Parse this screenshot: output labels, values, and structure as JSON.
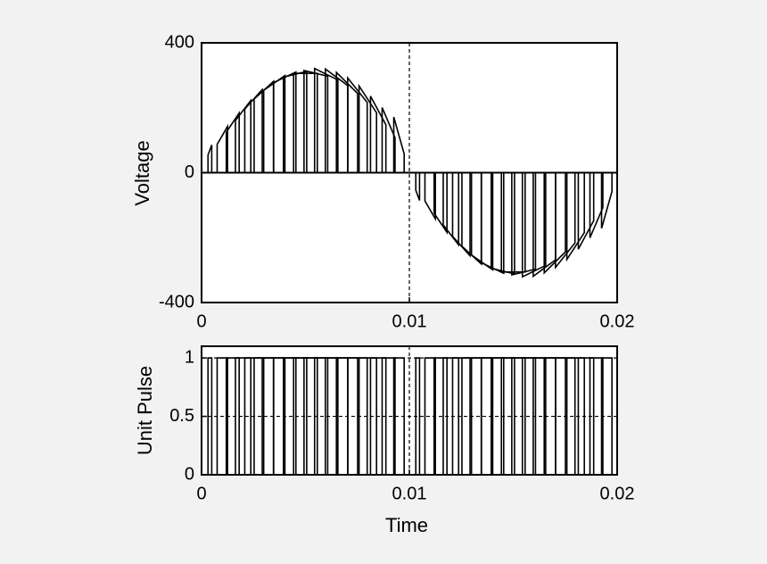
{
  "colors": {
    "background": "#f2f2f2",
    "plot_background": "#ffffff",
    "ink": "#000000"
  },
  "chart_data": [
    {
      "type": "line",
      "title": "",
      "xlabel": "",
      "ylabel": "Voltage",
      "xlim": [
        0,
        0.02
      ],
      "ylim": [
        -400,
        400
      ],
      "x_ticks": [
        0,
        0.01,
        0.02
      ],
      "x_tick_labels": [
        "0",
        "0.01",
        "0.02"
      ],
      "y_ticks": [
        -400,
        0,
        400
      ],
      "y_tick_labels": [
        "-400",
        "0",
        "400"
      ],
      "grid": false,
      "reference_lines": [
        {
          "orientation": "vertical",
          "at": 0.01,
          "style": "dashed"
        },
        {
          "orientation": "horizontal",
          "at": 0,
          "style": "solid"
        }
      ],
      "series": [
        {
          "style": "pulse-width modulated sine, amplitude ~311 V, 50 Hz, 40 pulses per cycle",
          "pulses": [
            {
              "start": 0.00031,
              "end": 0.00049,
              "peak": 70
            },
            {
              "start": 0.00075,
              "end": 0.00125,
              "peak": 115
            },
            {
              "start": 0.00119,
              "end": 0.00181,
              "peak": 155
            },
            {
              "start": 0.00163,
              "end": 0.00237,
              "peak": 193
            },
            {
              "start": 0.00208,
              "end": 0.00292,
              "peak": 228
            },
            {
              "start": 0.00253,
              "end": 0.00347,
              "peak": 257
            },
            {
              "start": 0.00299,
              "end": 0.00401,
              "peak": 280
            },
            {
              "start": 0.00346,
              "end": 0.00454,
              "peak": 298
            },
            {
              "start": 0.00394,
              "end": 0.00506,
              "peak": 308
            },
            {
              "start": 0.00443,
              "end": 0.00557,
              "peak": 311
            },
            {
              "start": 0.00493,
              "end": 0.00607,
              "peak": 311
            },
            {
              "start": 0.00544,
              "end": 0.00656,
              "peak": 308
            },
            {
              "start": 0.00596,
              "end": 0.00704,
              "peak": 298
            },
            {
              "start": 0.00649,
              "end": 0.00751,
              "peak": 280
            },
            {
              "start": 0.00703,
              "end": 0.00797,
              "peak": 257
            },
            {
              "start": 0.00758,
              "end": 0.00842,
              "peak": 228
            },
            {
              "start": 0.00813,
              "end": 0.00887,
              "peak": 193
            },
            {
              "start": 0.00869,
              "end": 0.00931,
              "peak": 155
            },
            {
              "start": 0.00925,
              "end": 0.00975,
              "peak": 115
            },
            {
              "start": 0.01031,
              "end": 0.01049,
              "peak": -70
            },
            {
              "start": 0.01075,
              "end": 0.01125,
              "peak": -115
            },
            {
              "start": 0.01119,
              "end": 0.01181,
              "peak": -155
            },
            {
              "start": 0.01163,
              "end": 0.01237,
              "peak": -193
            },
            {
              "start": 0.01208,
              "end": 0.01292,
              "peak": -228
            },
            {
              "start": 0.01253,
              "end": 0.01347,
              "peak": -257
            },
            {
              "start": 0.01299,
              "end": 0.01401,
              "peak": -280
            },
            {
              "start": 0.01346,
              "end": 0.01454,
              "peak": -298
            },
            {
              "start": 0.01394,
              "end": 0.01506,
              "peak": -308
            },
            {
              "start": 0.01443,
              "end": 0.01557,
              "peak": -311
            },
            {
              "start": 0.01493,
              "end": 0.01607,
              "peak": -311
            },
            {
              "start": 0.01544,
              "end": 0.01656,
              "peak": -308
            },
            {
              "start": 0.01596,
              "end": 0.01704,
              "peak": -298
            },
            {
              "start": 0.01649,
              "end": 0.01751,
              "peak": -280
            },
            {
              "start": 0.01703,
              "end": 0.01797,
              "peak": -257
            },
            {
              "start": 0.01758,
              "end": 0.01842,
              "peak": -228
            },
            {
              "start": 0.01813,
              "end": 0.01887,
              "peak": -193
            },
            {
              "start": 0.01869,
              "end": 0.01931,
              "peak": -155
            },
            {
              "start": 0.01925,
              "end": 0.01975,
              "peak": -115
            }
          ]
        }
      ]
    },
    {
      "type": "line",
      "title": "",
      "xlabel": "Time",
      "ylabel": "Unit Pulse",
      "xlim": [
        0,
        0.02
      ],
      "ylim": [
        0,
        1.1
      ],
      "x_ticks": [
        0,
        0.01,
        0.02
      ],
      "x_tick_labels": [
        "0",
        "0.01",
        "0.02"
      ],
      "y_ticks": [
        0,
        0.5,
        1
      ],
      "y_tick_labels": [
        "0",
        "0.5",
        "1"
      ],
      "grid": false,
      "reference_lines": [
        {
          "orientation": "horizontal",
          "at": 1,
          "style": "dashed"
        },
        {
          "orientation": "horizontal",
          "at": 0.5,
          "style": "dashed"
        },
        {
          "orientation": "vertical",
          "at": 0.01,
          "style": "dashed"
        }
      ],
      "series": [
        {
          "style": "unit pulse train, value 1 during each pulse, 0 otherwise",
          "pulses": [
            {
              "start": 0.00031,
              "end": 0.00049
            },
            {
              "start": 0.00075,
              "end": 0.00125
            },
            {
              "start": 0.00119,
              "end": 0.00181
            },
            {
              "start": 0.00163,
              "end": 0.00237
            },
            {
              "start": 0.00208,
              "end": 0.00292
            },
            {
              "start": 0.00253,
              "end": 0.00347
            },
            {
              "start": 0.00299,
              "end": 0.00401
            },
            {
              "start": 0.00346,
              "end": 0.00454
            },
            {
              "start": 0.00394,
              "end": 0.00506
            },
            {
              "start": 0.00443,
              "end": 0.00557
            },
            {
              "start": 0.00493,
              "end": 0.00607
            },
            {
              "start": 0.00544,
              "end": 0.00656
            },
            {
              "start": 0.00596,
              "end": 0.00704
            },
            {
              "start": 0.00649,
              "end": 0.00751
            },
            {
              "start": 0.00703,
              "end": 0.00797
            },
            {
              "start": 0.00758,
              "end": 0.00842
            },
            {
              "start": 0.00813,
              "end": 0.00887
            },
            {
              "start": 0.00869,
              "end": 0.00931
            },
            {
              "start": 0.00925,
              "end": 0.00975
            },
            {
              "start": 0.01031,
              "end": 0.01049
            },
            {
              "start": 0.01075,
              "end": 0.01125
            },
            {
              "start": 0.01119,
              "end": 0.01181
            },
            {
              "start": 0.01163,
              "end": 0.01237
            },
            {
              "start": 0.01208,
              "end": 0.01292
            },
            {
              "start": 0.01253,
              "end": 0.01347
            },
            {
              "start": 0.01299,
              "end": 0.01401
            },
            {
              "start": 0.01346,
              "end": 0.01454
            },
            {
              "start": 0.01394,
              "end": 0.01506
            },
            {
              "start": 0.01443,
              "end": 0.01557
            },
            {
              "start": 0.01493,
              "end": 0.01607
            },
            {
              "start": 0.01544,
              "end": 0.01656
            },
            {
              "start": 0.01596,
              "end": 0.01704
            },
            {
              "start": 0.01649,
              "end": 0.01751
            },
            {
              "start": 0.01703,
              "end": 0.01797
            },
            {
              "start": 0.01758,
              "end": 0.01842
            },
            {
              "start": 0.01813,
              "end": 0.01887
            },
            {
              "start": 0.01869,
              "end": 0.01931
            },
            {
              "start": 0.01925,
              "end": 0.01975
            }
          ]
        }
      ]
    }
  ]
}
